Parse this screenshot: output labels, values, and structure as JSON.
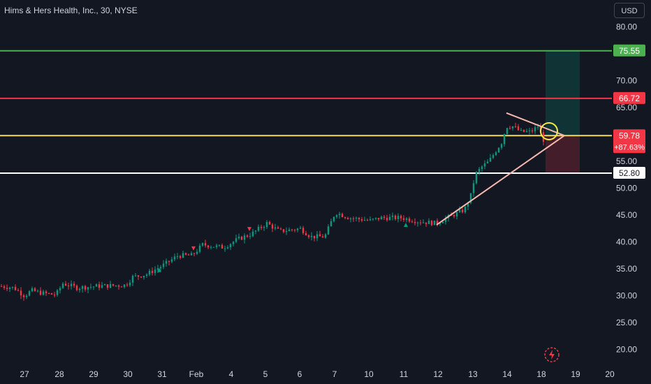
{
  "title": "Hims & Hers Health, Inc., 30, NYSE",
  "currency": "USD",
  "chart_data": {
    "type": "candlestick",
    "y_axis": {
      "min": 17.5,
      "max": 85,
      "ticks": [
        "80.00",
        "70.00",
        "65.00",
        "55.00",
        "50.00",
        "45.00",
        "40.00",
        "35.00",
        "30.00",
        "25.00",
        "20.00"
      ],
      "tick_values": [
        80,
        70,
        65,
        55,
        50,
        45,
        40,
        35,
        30,
        25,
        20
      ]
    },
    "x_axis": {
      "labels": [
        "27",
        "28",
        "29",
        "30",
        "31",
        "Feb",
        "4",
        "5",
        "6",
        "7",
        "10",
        "11",
        "12",
        "13",
        "14",
        "18",
        "19",
        "20"
      ]
    },
    "horizontal_lines": [
      {
        "value": 75.55,
        "label": "75.55",
        "color": "#4caf50"
      },
      {
        "value": 66.72,
        "label": "66.72",
        "color": "#f23645"
      },
      {
        "value": 59.78,
        "label": "59.78",
        "sublabel": "+87.63%",
        "color": "#f5d76e",
        "tag_color": "#f23645"
      },
      {
        "value": 52.8,
        "label": "52.80",
        "color": "#ffffff"
      }
    ],
    "last_price": 59.78,
    "change_percent": "+87.63%",
    "price_path": [
      [
        0,
        31.8
      ],
      [
        20,
        31.5
      ],
      [
        35,
        30.0
      ],
      [
        45,
        31.0
      ],
      [
        60,
        30.5
      ],
      [
        80,
        30.2
      ],
      [
        90,
        32.3
      ],
      [
        110,
        31.5
      ],
      [
        140,
        31.8
      ],
      [
        180,
        32.0
      ],
      [
        190,
        33.5
      ],
      [
        210,
        34.0
      ],
      [
        235,
        35.8
      ],
      [
        255,
        37.5
      ],
      [
        275,
        37.5
      ],
      [
        290,
        39.5
      ],
      [
        320,
        39.0
      ],
      [
        340,
        40.5
      ],
      [
        360,
        41.5
      ],
      [
        382,
        43.5
      ],
      [
        400,
        42.0
      ],
      [
        430,
        42.5
      ],
      [
        445,
        41.0
      ],
      [
        465,
        41.0
      ],
      [
        480,
        45.5
      ],
      [
        500,
        44.5
      ],
      [
        530,
        44.0
      ],
      [
        545,
        44.5
      ],
      [
        575,
        44.5
      ],
      [
        600,
        43.8
      ],
      [
        625,
        43.5
      ],
      [
        640,
        44.5
      ],
      [
        665,
        46.0
      ],
      [
        675,
        49.0
      ],
      [
        680,
        52.5
      ],
      [
        690,
        54.0
      ],
      [
        700,
        55.0
      ],
      [
        710,
        57.0
      ],
      [
        718,
        58.5
      ],
      [
        725,
        61.5
      ],
      [
        735,
        61.5
      ],
      [
        745,
        60.5
      ],
      [
        760,
        60.5
      ],
      [
        770,
        61.5
      ],
      [
        778,
        59.0
      ]
    ],
    "trendlines": [
      {
        "from": [
          625,
          43.2
        ],
        "to": [
          808,
          59.8
        ],
        "color": "#f7b8b0"
      },
      {
        "from": [
          725,
          64.0
        ],
        "to": [
          808,
          59.8
        ],
        "color": "#f7b8b0"
      }
    ],
    "position": {
      "entry": 59.78,
      "target": 75.55,
      "stop": 52.8
    }
  }
}
